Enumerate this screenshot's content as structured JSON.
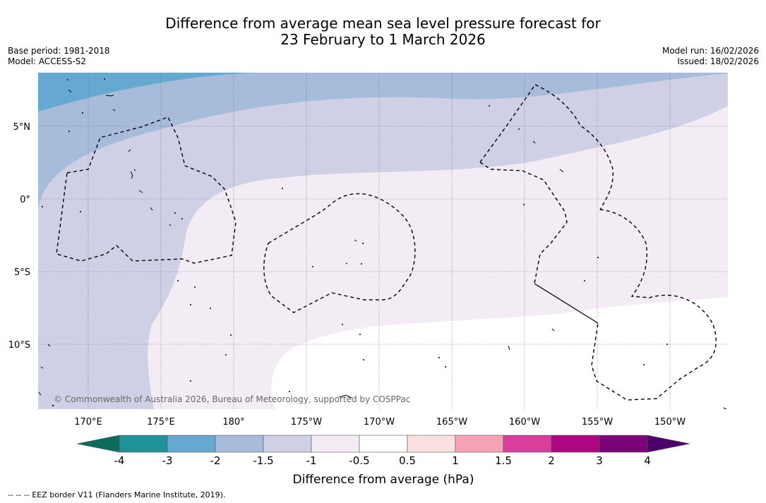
{
  "title": {
    "line1": "Difference from average mean sea level pressure forecast for",
    "line2": "23 February to 1 March 2026"
  },
  "meta": {
    "base_period": "Base period: 1981-2018",
    "model": "Model: ACCESS-S2",
    "model_run": "Model run: 16/02/2026",
    "issued": "Issued: 18/02/2026"
  },
  "map": {
    "lat_labels": [
      "5°N",
      "0°",
      "5°S",
      "10°S"
    ],
    "lon_labels": [
      "170°E",
      "175°E",
      "180°",
      "175°W",
      "170°W",
      "165°W",
      "160°W",
      "155°W",
      "150°W"
    ],
    "copyright": "© Commonwealth of Australia 2026, Bureau of Meteorology, supported by COSPPac"
  },
  "colorbar": {
    "ticks": [
      "-4",
      "-3",
      "-2",
      "-1.5",
      "-1",
      "-0.5",
      "0.5",
      "1",
      "1.5",
      "2",
      "3",
      "4"
    ],
    "colors": [
      "#0b6b5e",
      "#1f9199",
      "#66a9d0",
      "#a7bbdb",
      "#cfd0e5",
      "#f3ecf5",
      "#ffffff",
      "#fde0e0",
      "#f7a2b6",
      "#d83e9c",
      "#ad0680",
      "#7a0378",
      "#4a0068"
    ],
    "label": "Difference from average (hPa)"
  },
  "footnote": "--  --  -- EEZ border V11 (Flanders Marine Institute, 2019)."
}
